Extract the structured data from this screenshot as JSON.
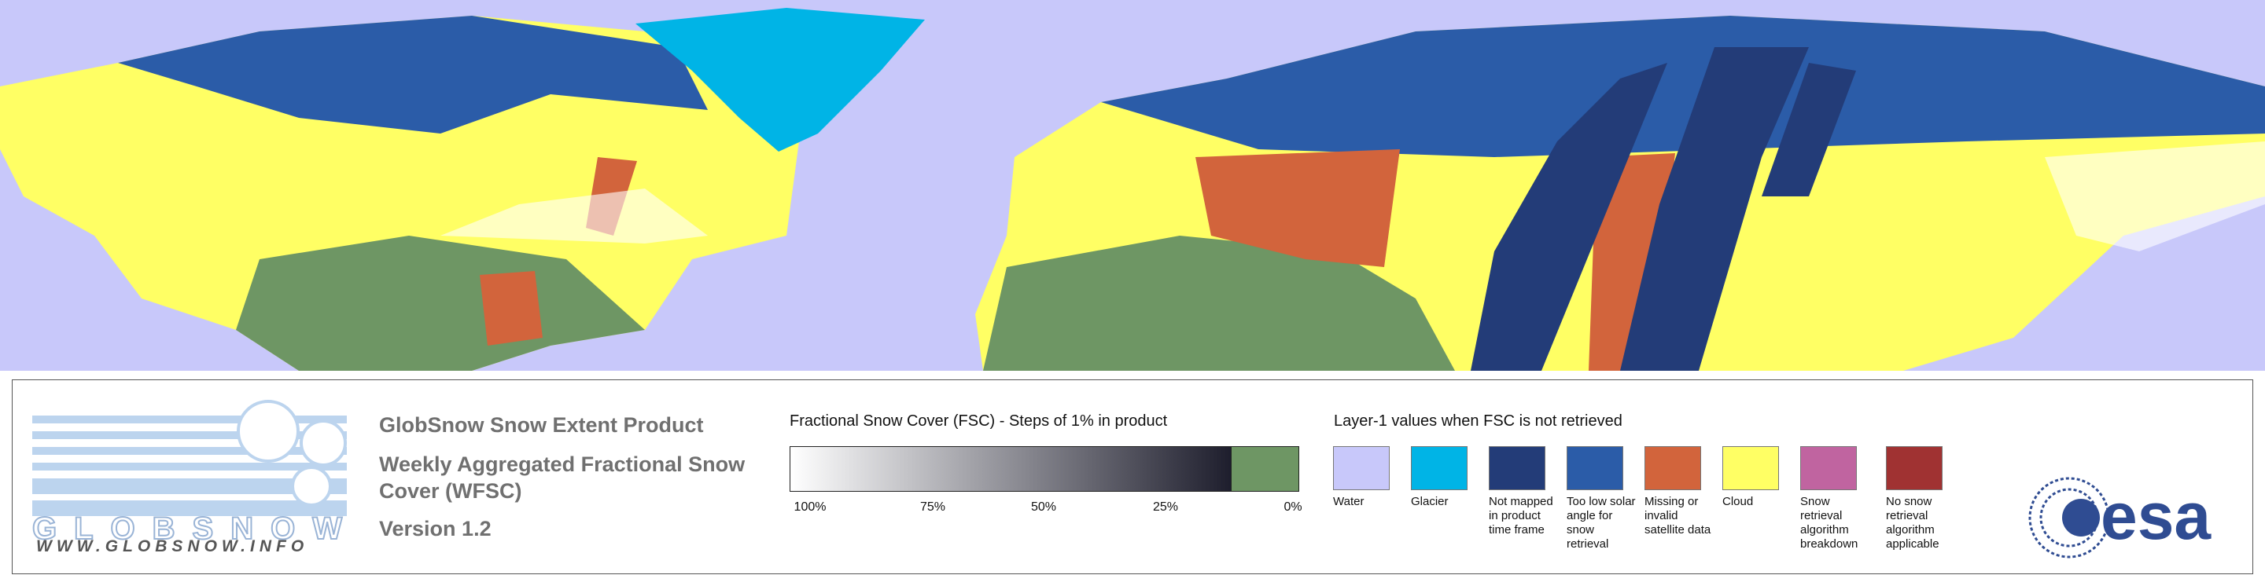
{
  "header": {
    "title": "GlobSnow Snow Extent Product",
    "subtitle": "Weekly Aggregated Fractional Snow Cover (WFSC)",
    "version": "Version 1.2"
  },
  "logo": {
    "name": "GLOBSNOW",
    "url": "WWW.GLOBSNOW.INFO",
    "agency": "esa"
  },
  "fsc_legend": {
    "title": "Fractional Snow Cover (FSC) - Steps of 1% in product",
    "ticks": [
      "100%",
      "75%",
      "50%",
      "25%",
      "0%"
    ],
    "gradient": [
      "#ffffff",
      "#1e1e2d"
    ],
    "zero_color": "#6e9664"
  },
  "layer1_legend": {
    "title": "Layer-1 values when FSC is not retrieved",
    "items": [
      {
        "label": "Water",
        "color": "#c8c8fa"
      },
      {
        "label": "Glacier",
        "color": "#00b4e6"
      },
      {
        "label": "Not mapped in product time frame",
        "color": "#233c78"
      },
      {
        "label": "Too low solar angle for snow retrieval",
        "color": "#2b5ca8"
      },
      {
        "label": "Missing or invalid satellite data",
        "color": "#d2643c"
      },
      {
        "label": "Cloud",
        "color": "#ffff64"
      },
      {
        "label": "Snow retrieval algorithm breakdown",
        "color": "#c064a0"
      },
      {
        "label": "No snow retrieval algorithm applicable",
        "color": "#a03232"
      }
    ]
  }
}
